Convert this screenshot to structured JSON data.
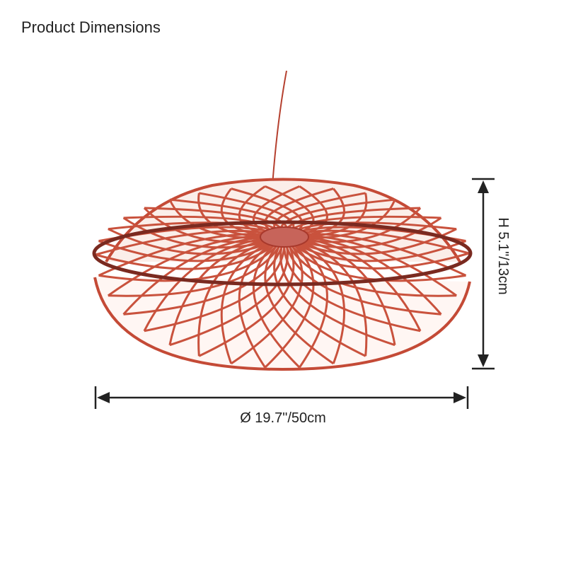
{
  "title": "Product Dimensions",
  "dimensions": {
    "height": "H 5.1\"/13cm",
    "width": "Ø 19.7\"/50cm"
  }
}
